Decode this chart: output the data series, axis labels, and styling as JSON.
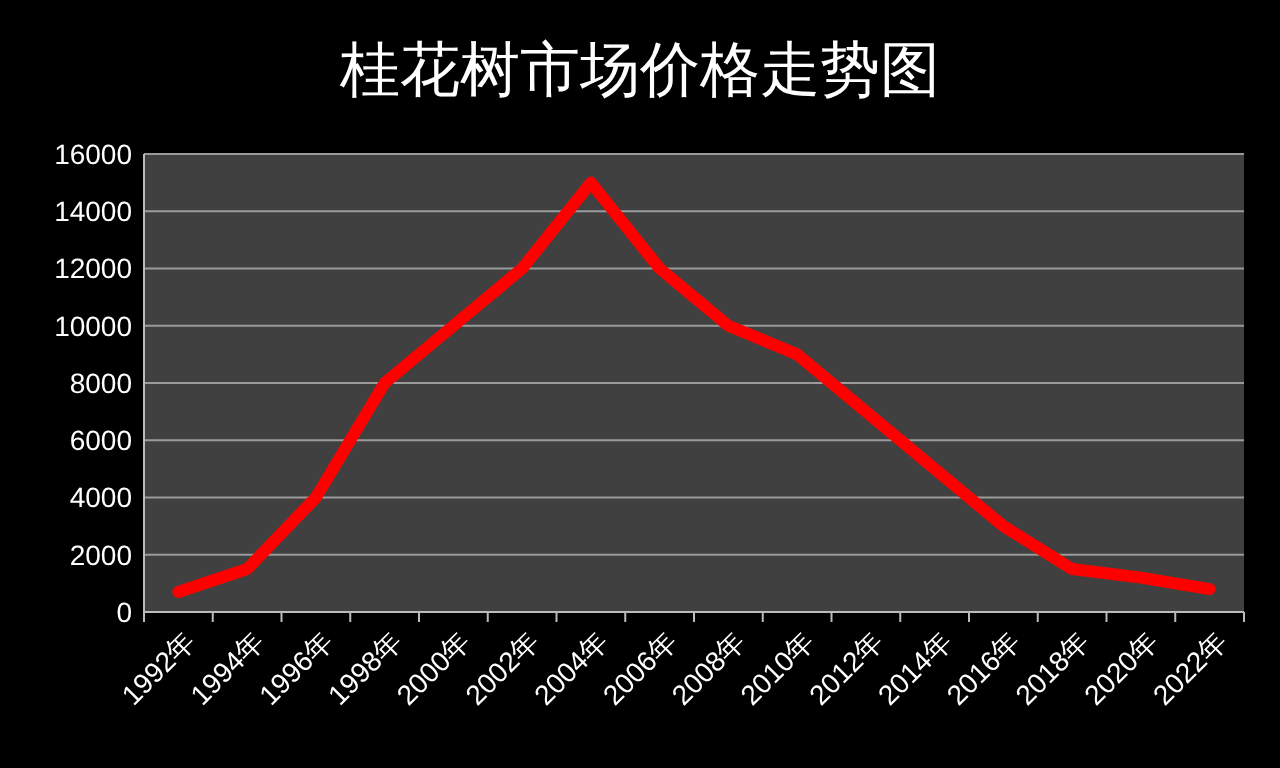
{
  "chart_data": {
    "type": "line",
    "title": "桂花树市场价格走势图",
    "categories": [
      "1992年",
      "1994年",
      "1996年",
      "1998年",
      "2000年",
      "2002年",
      "2004年",
      "2006年",
      "2008年",
      "2010年",
      "2012年",
      "2014年",
      "2016年",
      "2018年",
      "2020年",
      "2022年"
    ],
    "series": [
      {
        "color": "#ff0000",
        "values": [
          700,
          1500,
          4000,
          8000,
          10000,
          12000,
          15000,
          12000,
          10000,
          9000,
          7000,
          5000,
          3000,
          1500,
          1200,
          800
        ]
      }
    ],
    "ylim": [
      0,
      16000
    ],
    "yticks": [
      0,
      2000,
      4000,
      6000,
      8000,
      10000,
      12000,
      14000,
      16000
    ],
    "grid": "y",
    "marker": "none",
    "line_style": "solid"
  }
}
